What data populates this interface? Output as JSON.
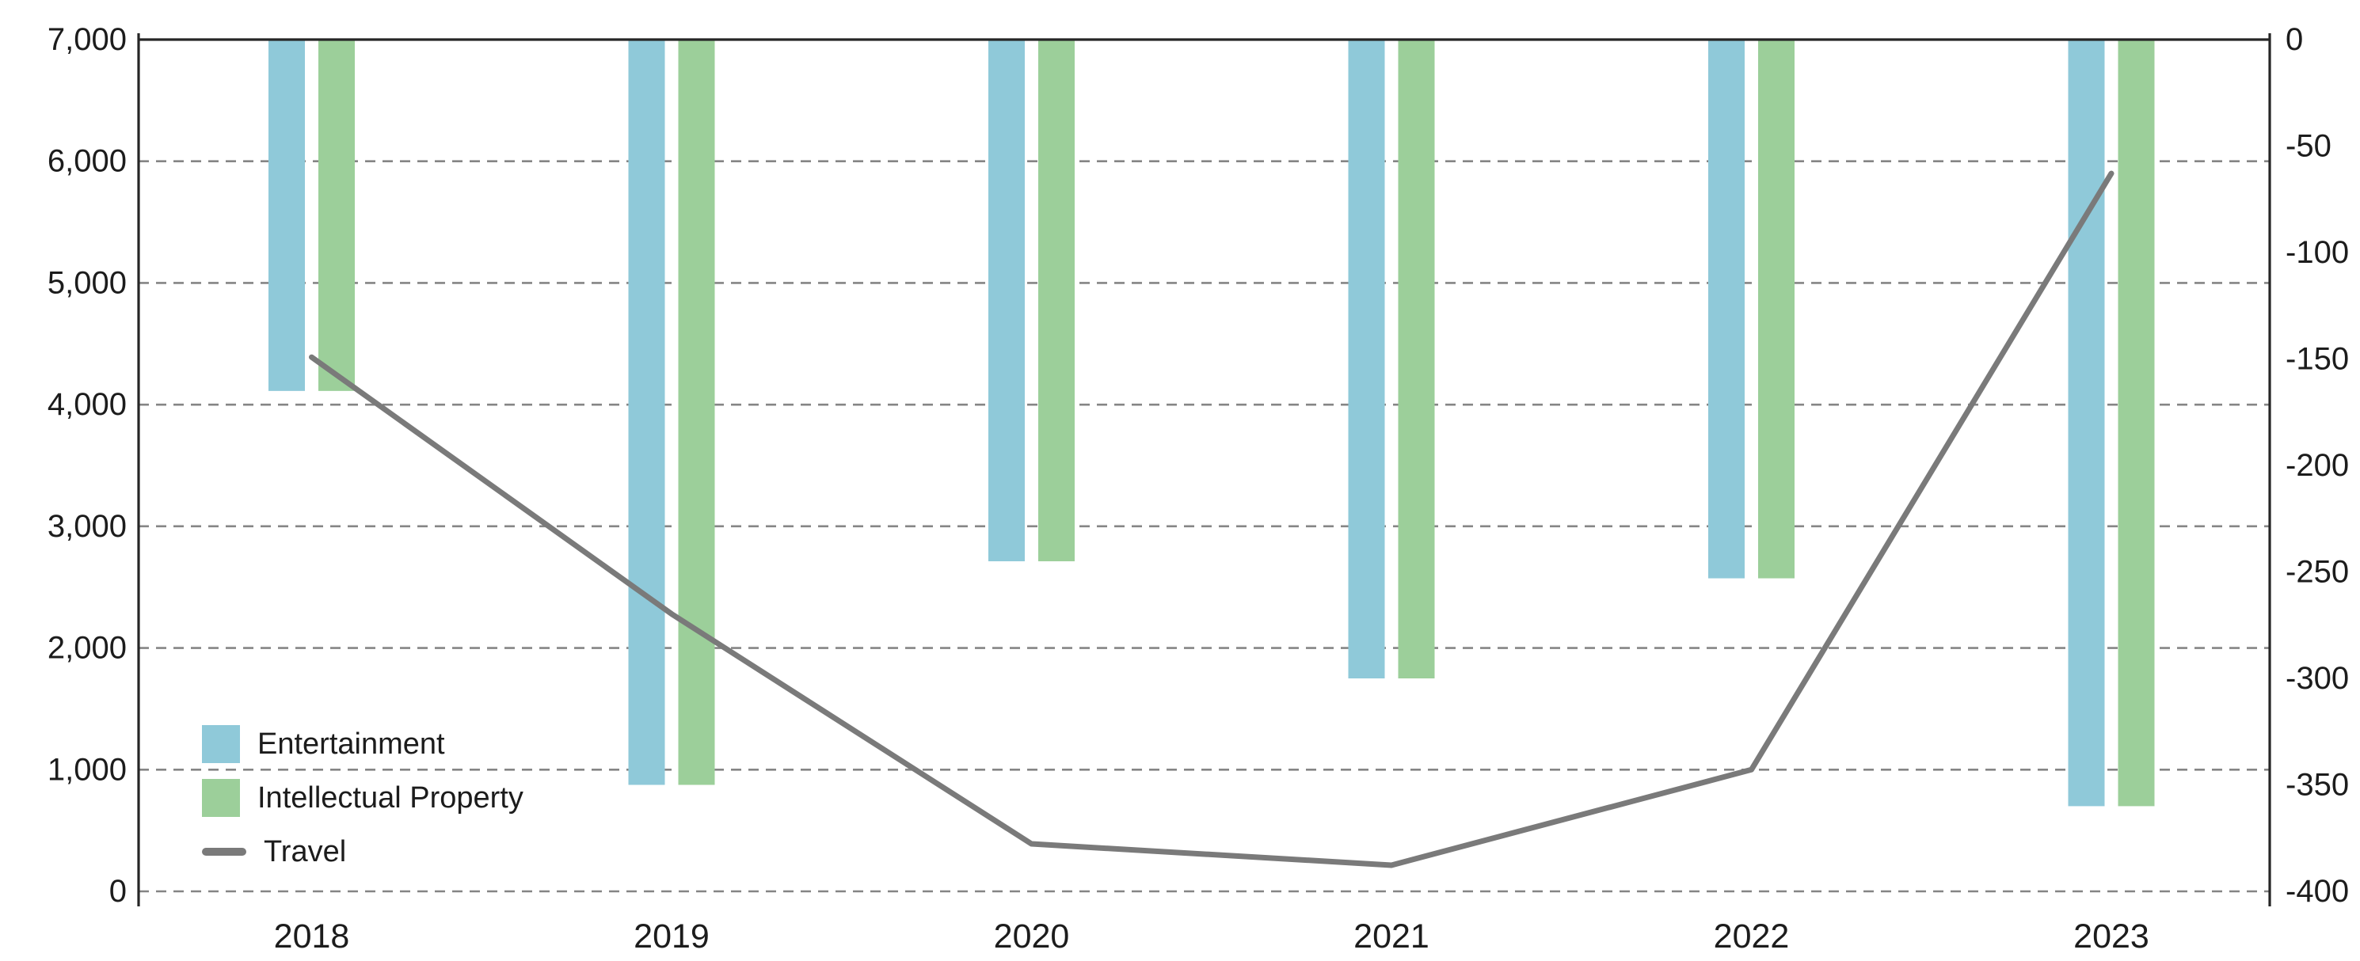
{
  "chart_data": {
    "type": "combo-bar-line",
    "title": "",
    "categories": [
      "2018",
      "2019",
      "2020",
      "2021",
      "2022",
      "2023"
    ],
    "series": [
      {
        "name": "Entertainment",
        "type": "bar",
        "axis": "right",
        "color": "#8FC9D9",
        "values": [
          -165,
          -350,
          -245,
          -300,
          -253,
          -360
        ]
      },
      {
        "name": "Intellectual Property",
        "type": "bar",
        "axis": "right",
        "color": "#9CCF9A",
        "values": [
          -165,
          -350,
          -245,
          -300,
          -253,
          -360
        ]
      },
      {
        "name": "Travel",
        "type": "line",
        "axis": "left",
        "color": "#7A7A7A",
        "values": [
          4390,
          2280,
          390,
          215,
          1000,
          5900
        ]
      }
    ],
    "left_axis": {
      "min": 0,
      "max": 7000,
      "step": 1000,
      "tick_labels_top_to_bottom": [
        "7,000",
        "6,000",
        "5,000",
        "4,000",
        "3,000",
        "2,000",
        "1,000",
        "0"
      ]
    },
    "right_axis": {
      "min": -400,
      "max": 0,
      "step": 50,
      "tick_labels_top_to_bottom": [
        "0",
        "-50",
        "-100",
        "-150",
        "-200",
        "-250",
        "-300",
        "-350",
        "-400"
      ]
    },
    "grid": "horizontal-dashed",
    "legend_position": "inside-bottom-left",
    "colors": {
      "grid_line": "#858585",
      "axis_line": "#262626",
      "tick_text": "#1c1c1c",
      "background": "#ffffff"
    }
  }
}
